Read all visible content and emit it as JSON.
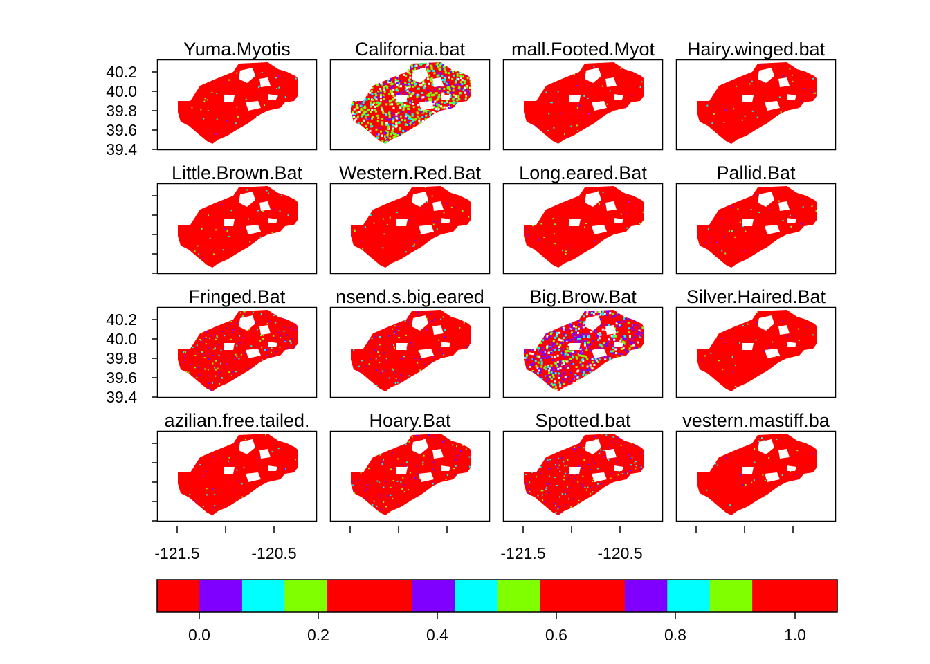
{
  "panels": [
    {
      "title": "Yuma.Myotis",
      "style": "red"
    },
    {
      "title": "California.bat",
      "style": "rainbow"
    },
    {
      "title": "mall.Footed.Myot",
      "style": "red"
    },
    {
      "title": "Hairy.winged.bat",
      "style": "red"
    },
    {
      "title": "Little.Brown.Bat",
      "style": "red"
    },
    {
      "title": "Western.Red.Bat",
      "style": "red"
    },
    {
      "title": "Long.eared.Bat",
      "style": "red"
    },
    {
      "title": "Pallid.Bat",
      "style": "red"
    },
    {
      "title": "Fringed.Bat",
      "style": "speckled"
    },
    {
      "title": "nsend.s.big.eared",
      "style": "speckled-light"
    },
    {
      "title": "Big.Brow.Bat",
      "style": "purple"
    },
    {
      "title": "Silver.Haired.Bat",
      "style": "red"
    },
    {
      "title": "azilian.free.tailed.",
      "style": "red"
    },
    {
      "title": "Hoary.Bat",
      "style": "speckled-light"
    },
    {
      "title": "Spotted.bat",
      "style": "speckled"
    },
    {
      "title": "vestern.mastiff.ba",
      "style": "red"
    }
  ],
  "y_axis": {
    "tick_labels": [
      "40.2",
      "40.0",
      "39.8",
      "39.6",
      "39.4"
    ]
  },
  "x_axis": {
    "tick_labels": [
      "-121.5",
      "-120.5"
    ]
  },
  "colorbar": {
    "colors": [
      "#ff0000",
      "#8000ff",
      "#00ffff",
      "#80ff00",
      "#ff0000",
      "#ff0000",
      "#8000ff",
      "#00ffff",
      "#80ff00",
      "#ff0000",
      "#ff0000",
      "#8000ff",
      "#00ffff",
      "#80ff00",
      "#ff0000",
      "#ff0000"
    ],
    "tick_labels": [
      "0.0",
      "0.2",
      "0.4",
      "0.6",
      "0.8",
      "1.0"
    ]
  },
  "palette": {
    "red": "#ff0000",
    "purple": "#8000ff",
    "cyan": "#00ffff",
    "green": "#80ff00",
    "frame": "#000000"
  }
}
